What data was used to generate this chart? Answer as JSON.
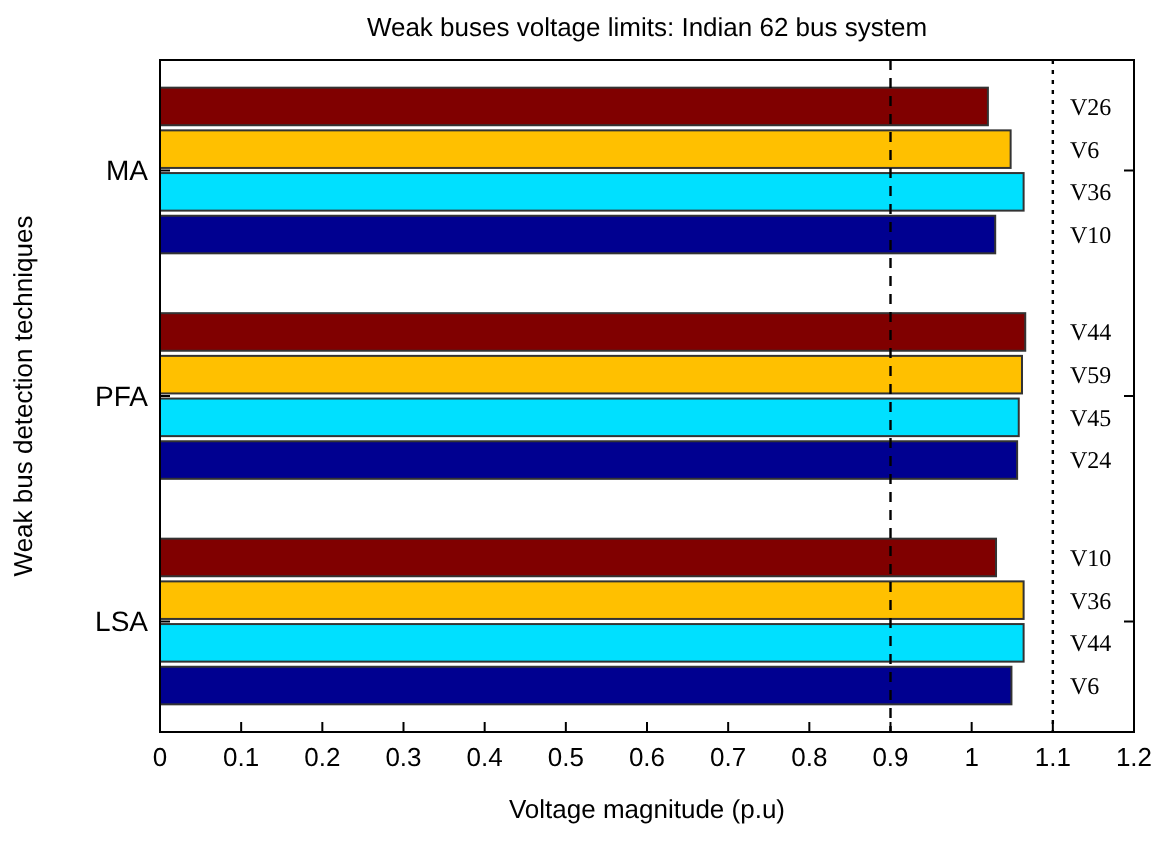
{
  "chart_data": {
    "type": "bar",
    "orientation": "horizontal",
    "title": "Weak buses voltage limits: Indian 62 bus system",
    "xlabel": "Voltage magnitude (p.u)",
    "ylabel": "Weak bus detection techniques",
    "categories": [
      "MA",
      "PFA",
      "LSA"
    ],
    "series": [
      {
        "color": "#800000",
        "values": [
          1.02,
          1.066,
          1.03
        ],
        "value_labels": [
          "V26",
          "V44",
          "V10"
        ]
      },
      {
        "color": "#ffc000",
        "values": [
          1.048,
          1.062,
          1.064
        ],
        "value_labels": [
          "V6",
          "V59",
          "V36"
        ]
      },
      {
        "color": "#00e0ff",
        "values": [
          1.064,
          1.058,
          1.064
        ],
        "value_labels": [
          "V36",
          "V45",
          "V44"
        ]
      },
      {
        "color": "#000090",
        "values": [
          1.029,
          1.056,
          1.049
        ],
        "value_labels": [
          "V10",
          "V24",
          "V6"
        ]
      }
    ],
    "xlim": [
      0,
      1.2
    ],
    "xticks": [
      0,
      0.1,
      0.2,
      0.3,
      0.4,
      0.5,
      0.6,
      0.7,
      0.8,
      0.9,
      1,
      1.1,
      1.2
    ],
    "ref_lines": [
      {
        "axis": "x",
        "value": 0.9,
        "line_style": "dashed",
        "color": "#000000"
      },
      {
        "axis": "x",
        "value": 1.1,
        "line_style": "dotted",
        "color": "#000000"
      }
    ],
    "grid": false
  }
}
